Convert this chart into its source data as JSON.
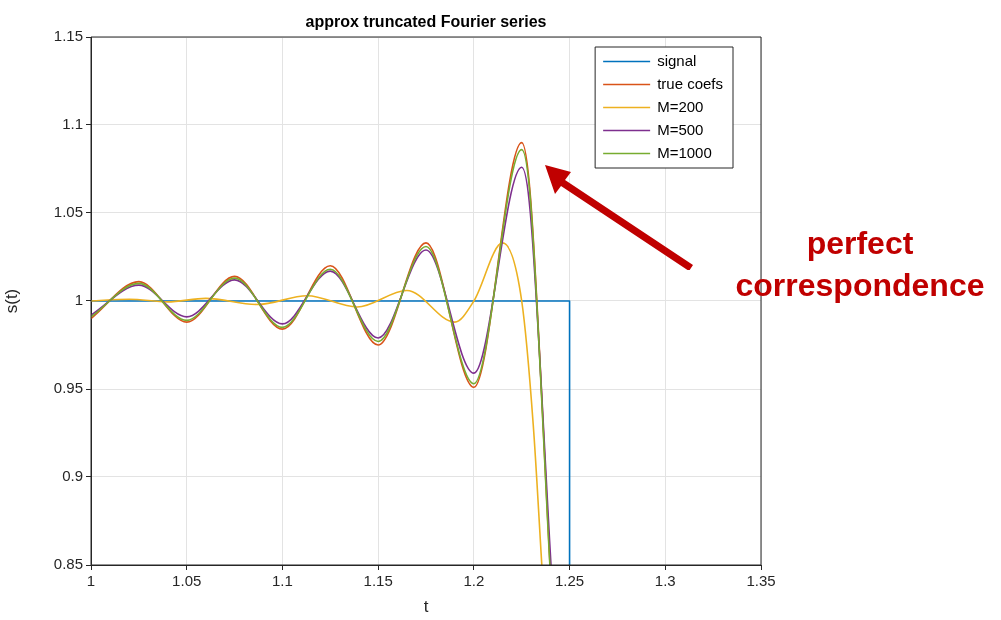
{
  "chart_data": {
    "type": "line",
    "title": "approx truncated Fourier series",
    "xlabel": "t",
    "ylabel": "s(t)",
    "xlim": [
      1,
      1.35
    ],
    "xticks": [
      1,
      1.05,
      1.1,
      1.15,
      1.2,
      1.25,
      1.3,
      1.35
    ],
    "ylim": [
      0.85,
      1.15
    ],
    "yticks": [
      0.85,
      0.9,
      0.95,
      1,
      1.05,
      1.1,
      1.15
    ],
    "grid": true,
    "legend": "top right",
    "marker": "none",
    "line_style": "solid",
    "annotations": [
      "perfect correspondence"
    ],
    "series": [
      {
        "name": "signal",
        "color": "#0072bd",
        "x": [
          1,
          1.25,
          1.25
        ],
        "values": [
          1,
          1,
          0.85
        ]
      },
      {
        "name": "true coefs",
        "color": "#d95319",
        "x": [
          1,
          1.025,
          1.05,
          1.075,
          1.1,
          1.125,
          1.15,
          1.175,
          1.2,
          1.225,
          1.2295,
          1.2398
        ],
        "values": [
          0.99,
          1.011,
          0.988,
          1.014,
          0.984,
          1.02,
          0.975,
          1.033,
          0.951,
          1.09,
          1.06,
          0.85
        ]
      },
      {
        "name": "M=200",
        "color": "#edb120",
        "x": [
          1,
          1.02,
          1.04,
          1.06,
          1.087,
          1.113,
          1.139,
          1.165,
          1.19,
          1.2,
          1.215,
          1.225,
          1.231,
          1.2355
        ],
        "values": [
          1,
          1.001,
          0.9995,
          1.0015,
          0.998,
          1.003,
          0.9966,
          1.006,
          0.988,
          1,
          1.033,
          1,
          0.93,
          0.85
        ]
      },
      {
        "name": "M=500",
        "color": "#7e2f8e",
        "x": [
          1,
          1.025,
          1.05,
          1.075,
          1.1,
          1.125,
          1.15,
          1.175,
          1.2,
          1.225,
          1.2295,
          1.2403
        ],
        "values": [
          0.992,
          1.009,
          0.991,
          1.012,
          0.987,
          1.017,
          0.979,
          1.029,
          0.959,
          1.076,
          1.05,
          0.85
        ]
      },
      {
        "name": "M=1000",
        "color": "#77ac30",
        "x": [
          1,
          1.025,
          1.05,
          1.075,
          1.1,
          1.125,
          1.15,
          1.175,
          1.2,
          1.225,
          1.2295,
          1.2397
        ],
        "values": [
          0.991,
          1.01,
          0.989,
          1.013,
          0.985,
          1.018,
          0.977,
          1.031,
          0.953,
          1.086,
          1.058,
          0.85
        ]
      }
    ]
  }
}
